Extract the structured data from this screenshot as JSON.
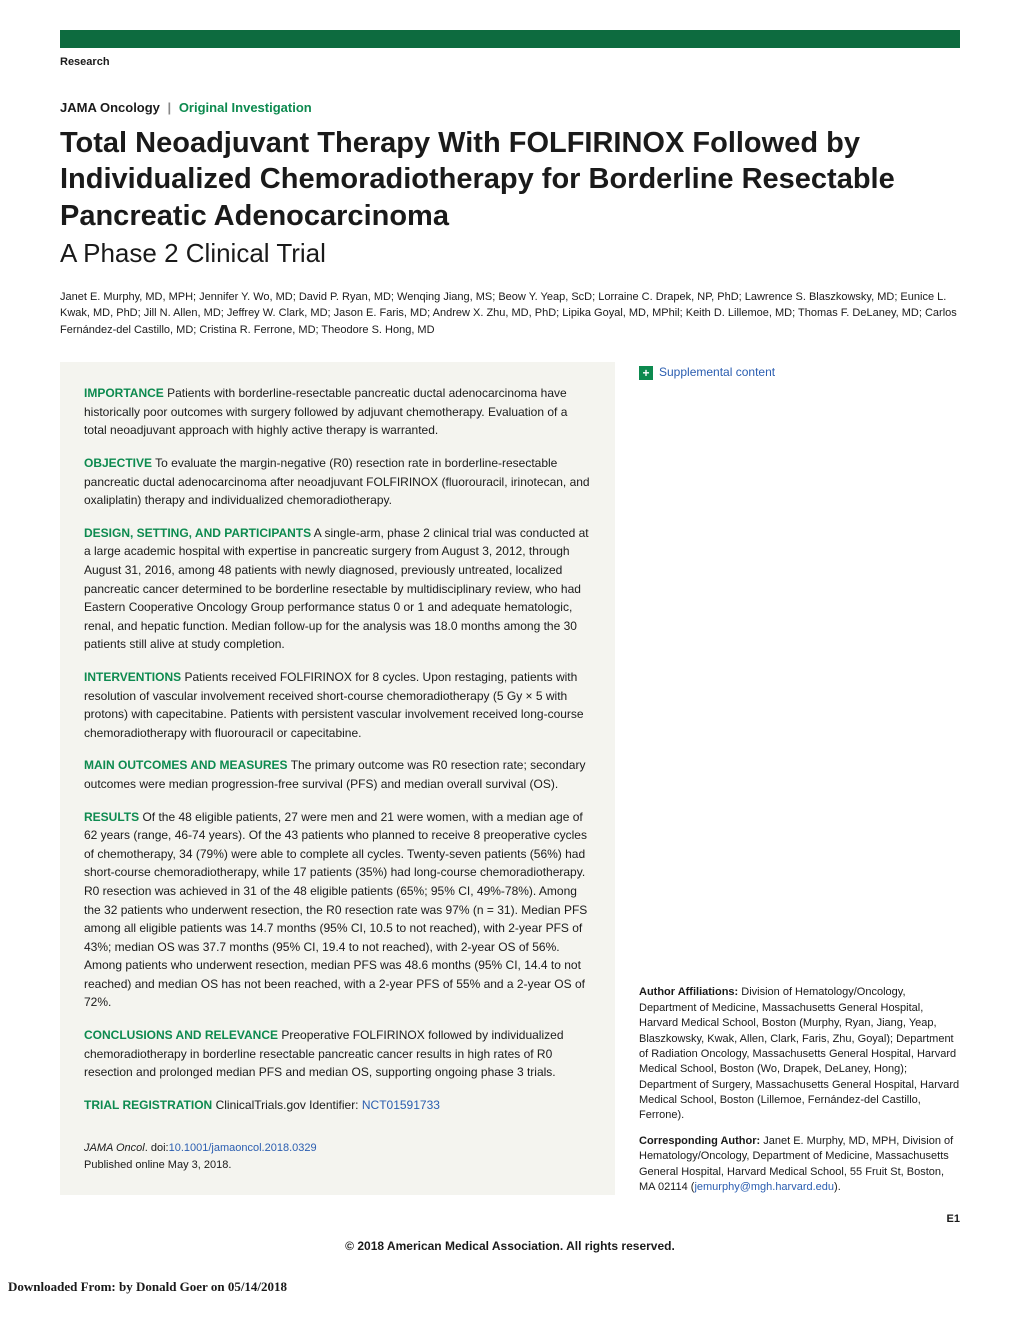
{
  "colors": {
    "accent_green": "#0d8a4f",
    "bar_green": "#0d6b3f",
    "link_blue": "#2a5db0",
    "abstract_bg": "#f4f4ef"
  },
  "header": {
    "research_label": "Research",
    "journal_name": "JAMA Oncology",
    "article_type": "Original Investigation"
  },
  "title": "Total Neoadjuvant Therapy With FOLFIRINOX Followed by Individualized Chemoradiotherapy for Borderline Resectable Pancreatic Adenocarcinoma",
  "subtitle": "A Phase 2 Clinical Trial",
  "authors": "Janet E. Murphy, MD, MPH; Jennifer Y. Wo, MD; David P. Ryan, MD; Wenqing Jiang, MS; Beow Y. Yeap, ScD; Lorraine C. Drapek, NP, PhD; Lawrence S. Blaszkowsky, MD; Eunice L. Kwak, MD, PhD; Jill N. Allen, MD; Jeffrey W. Clark, MD; Jason E. Faris, MD; Andrew X. Zhu, MD, PhD; Lipika Goyal, MD, MPhil; Keith D. Lillemoe, MD; Thomas F. DeLaney, MD; Carlos Fernández-del Castillo, MD; Cristina R. Ferrone, MD; Theodore S. Hong, MD",
  "abstract": {
    "importance": {
      "heading": "IMPORTANCE",
      "text": "Patients with borderline-resectable pancreatic ductal adenocarcinoma have historically poor outcomes with surgery followed by adjuvant chemotherapy. Evaluation of a total neoadjuvant approach with highly active therapy is warranted."
    },
    "objective": {
      "heading": "OBJECTIVE",
      "text": "To evaluate the margin-negative (R0) resection rate in borderline-resectable pancreatic ductal adenocarcinoma after neoadjuvant FOLFIRINOX (fluorouracil, irinotecan, and oxaliplatin) therapy and individualized chemoradiotherapy."
    },
    "design": {
      "heading": "DESIGN, SETTING, AND PARTICIPANTS",
      "text": "A single-arm, phase 2 clinical trial was conducted at a large academic hospital with expertise in pancreatic surgery from August 3, 2012, through August 31, 2016, among 48 patients with newly diagnosed, previously untreated, localized pancreatic cancer determined to be borderline resectable by multidisciplinary review, who had Eastern Cooperative Oncology Group performance status 0 or 1 and adequate hematologic, renal, and hepatic function. Median follow-up for the analysis was 18.0 months among the 30 patients still alive at study completion."
    },
    "interventions": {
      "heading": "INTERVENTIONS",
      "text": "Patients received FOLFIRINOX for 8 cycles. Upon restaging, patients with resolution of vascular involvement received short-course chemoradiotherapy (5 Gy × 5 with protons) with capecitabine. Patients with persistent vascular involvement received long-course chemoradiotherapy with fluorouracil or capecitabine."
    },
    "outcomes": {
      "heading": "MAIN OUTCOMES AND MEASURES",
      "text": "The primary outcome was R0 resection rate; secondary outcomes were median progression-free survival (PFS) and median overall survival (OS)."
    },
    "results": {
      "heading": "RESULTS",
      "text": "Of the 48 eligible patients, 27 were men and 21 were women, with a median age of 62 years (range, 46-74 years). Of the 43 patients who planned to receive 8 preoperative cycles of chemotherapy, 34 (79%) were able to complete all cycles. Twenty-seven patients (56%) had short-course chemoradiotherapy, while 17 patients (35%) had long-course chemoradiotherapy. R0 resection was achieved in 31 of the 48 eligible patients (65%; 95% CI, 49%-78%). Among the 32 patients who underwent resection, the R0 resection rate was 97% (n = 31). Median PFS among all eligible patients was 14.7 months (95% CI, 10.5 to not reached), with 2-year PFS of 43%; median OS was 37.7 months (95% CI, 19.4 to not reached), with 2-year OS of 56%. Among patients who underwent resection, median PFS was 48.6 months (95% CI, 14.4 to not reached) and median OS has not been reached, with a 2-year PFS of 55% and a 2-year OS of 72%."
    },
    "conclusions": {
      "heading": "CONCLUSIONS AND RELEVANCE",
      "text": "Preoperative FOLFIRINOX followed by individualized chemoradiotherapy in borderline resectable pancreatic cancer results in high rates of R0 resection and prolonged median PFS and median OS, supporting ongoing phase 3 trials."
    },
    "trial": {
      "heading": "TRIAL REGISTRATION",
      "text": "ClinicalTrials.gov Identifier: ",
      "link": "NCT01591733"
    }
  },
  "footer": {
    "journal_cite": "JAMA Oncol",
    "doi_label": ". doi:",
    "doi_link": "10.1001/jamaoncol.2018.0329",
    "pub_date": "Published online May 3, 2018."
  },
  "sidebar": {
    "supplemental_label": "Supplemental content",
    "affiliations_heading": "Author Affiliations:",
    "affiliations_text": " Division of Hematology/Oncology, Department of Medicine, Massachusetts General Hospital, Harvard Medical School, Boston (Murphy, Ryan, Jiang, Yeap, Blaszkowsky, Kwak, Allen, Clark, Faris, Zhu, Goyal); Department of Radiation Oncology, Massachusetts General Hospital, Harvard Medical School, Boston (Wo, Drapek, DeLaney, Hong); Department of Surgery, Massachusetts General Hospital, Harvard Medical School, Boston (Lillemoe, Fernández-del Castillo, Ferrone).",
    "corresponding_heading": "Corresponding Author:",
    "corresponding_text": " Janet E. Murphy, MD, MPH, Division of Hematology/Oncology, Department of Medicine, Massachusetts General Hospital, Harvard Medical School, 55 Fruit St, Boston, MA 02114 (",
    "corresponding_email": "jemurphy@mgh.harvard.edu",
    "corresponding_close": ")."
  },
  "page_number": "E1",
  "copyright": "© 2018 American Medical Association. All rights reserved.",
  "download_line": "Downloaded From:  by Donald Goer on 05/14/2018"
}
